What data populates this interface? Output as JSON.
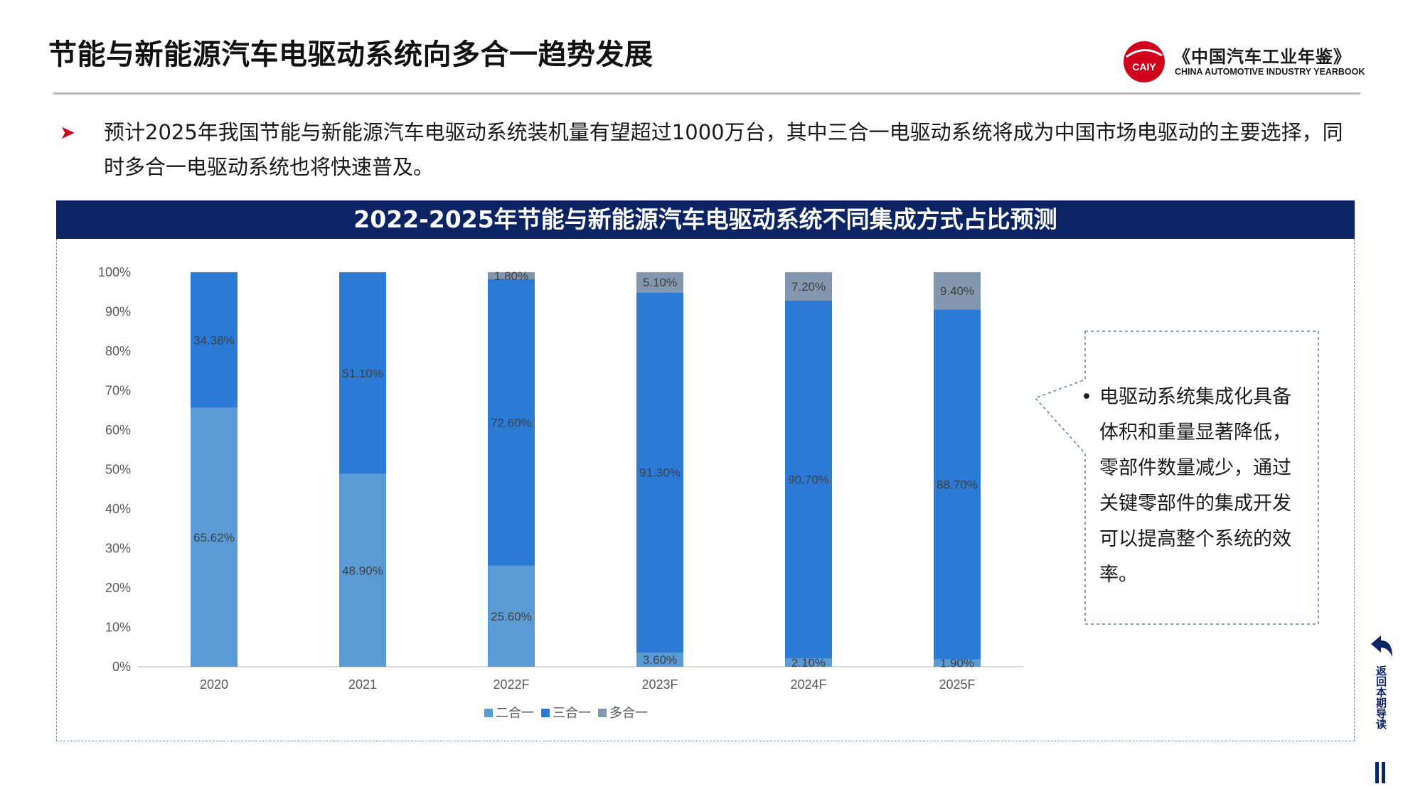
{
  "header": {
    "title": "节能与新能源汽车电驱动系统向多合一趋势发展",
    "logo_text": "CAIY",
    "logo_cn": "《中国汽车工业年鉴》",
    "logo_en": "CHINA AUTOMOTIVE INDUSTRY YEARBOOK"
  },
  "bullet": {
    "icon": "arrow-right-icon",
    "text": "预计2025年我国节能与新能源汽车电驱动系统装机量有望超过1000万台，其中三合一电驱动系统将成为中国市场电驱动的主要选择，同时多合一电驱动系统也将快速普及。"
  },
  "banner": {
    "title": "2022-2025年节能与新能源汽车电驱动系统不同集成方式占比预测"
  },
  "callout": {
    "bullet": "•",
    "text": "电驱动系统集成化具备体积和重量显著降低，零部件数量减少，通过关键零部件的集成开发可以提高整个系统的效率。"
  },
  "nav": {
    "back_label": "返回本期导读",
    "icon": "back-arrow-icon"
  },
  "colors": {
    "banner": "#0d2464",
    "accent_red": "#d0021b",
    "two_in_one": "#5b9bd5",
    "three_in_one": "#2b7bd6",
    "multi_in_one": "#8497b0"
  },
  "chart_data": {
    "type": "bar",
    "stacked": true,
    "categories": [
      "2020",
      "2021",
      "2022F",
      "2023F",
      "2024F",
      "2025F"
    ],
    "ylim": [
      0,
      100
    ],
    "yticks": [
      "0%",
      "10%",
      "20%",
      "30%",
      "40%",
      "50%",
      "60%",
      "70%",
      "80%",
      "90%",
      "100%"
    ],
    "legend_position": "bottom",
    "grid": false,
    "series": [
      {
        "name": "二合一",
        "color": "#5b9bd5",
        "values": [
          65.62,
          48.9,
          25.6,
          3.6,
          2.1,
          1.9
        ],
        "labels": [
          "65.62%",
          "48.90%",
          "25.60%",
          "3.60%",
          "2.10%",
          "1.90%"
        ]
      },
      {
        "name": "三合一",
        "color": "#2b7bd6",
        "values": [
          34.38,
          51.1,
          72.6,
          91.3,
          90.7,
          88.7
        ],
        "labels": [
          "34.38%",
          "51.10%",
          "72.60%",
          "91.30%",
          "90.70%",
          "88.70%"
        ]
      },
      {
        "name": "多合一",
        "color": "#8497b0",
        "values": [
          0,
          0,
          1.8,
          5.1,
          7.2,
          9.4
        ],
        "labels": [
          "",
          "",
          "1.80%",
          "5.10%",
          "7.20%",
          "9.40%"
        ]
      }
    ]
  }
}
